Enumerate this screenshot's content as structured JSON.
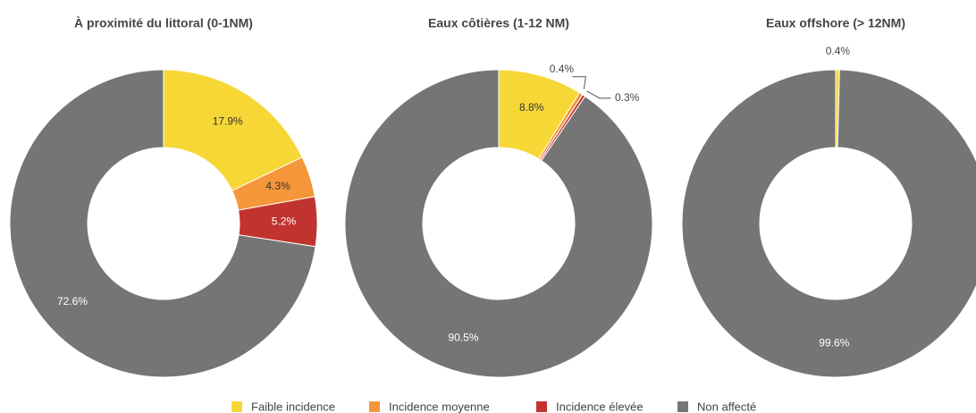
{
  "chart_data": [
    {
      "type": "pie",
      "title": "À proximité du littoral (0-1NM)",
      "categories": [
        "Faible incidence",
        "Incidence moyenne",
        "Incidence élevée",
        "Non affecté"
      ],
      "values": [
        17.9,
        4.3,
        5.2,
        72.6
      ],
      "value_labels": [
        "17.9%",
        "4.3%",
        "5.2%",
        "72.6%"
      ],
      "colors": [
        "#f7d736",
        "#f5963a",
        "#c0332f",
        "#757575"
      ]
    },
    {
      "type": "pie",
      "title": "Eaux côtières (1-12 NM)",
      "categories": [
        "Faible incidence",
        "Incidence moyenne",
        "Incidence élevée",
        "Non affecté"
      ],
      "values": [
        8.8,
        0.4,
        0.3,
        90.5
      ],
      "value_labels": [
        "8.8%",
        "0.4%",
        "0.3%",
        "90.5%"
      ],
      "colors": [
        "#f7d736",
        "#f5963a",
        "#c0332f",
        "#757575"
      ]
    },
    {
      "type": "pie",
      "title": "Eaux offshore (> 12NM)",
      "categories": [
        "Faible incidence",
        "Non affecté"
      ],
      "values": [
        0.4,
        99.6
      ],
      "value_labels": [
        "0.4%",
        "99.6%"
      ],
      "colors": [
        "#f7d736",
        "#757575"
      ]
    }
  ]
}
